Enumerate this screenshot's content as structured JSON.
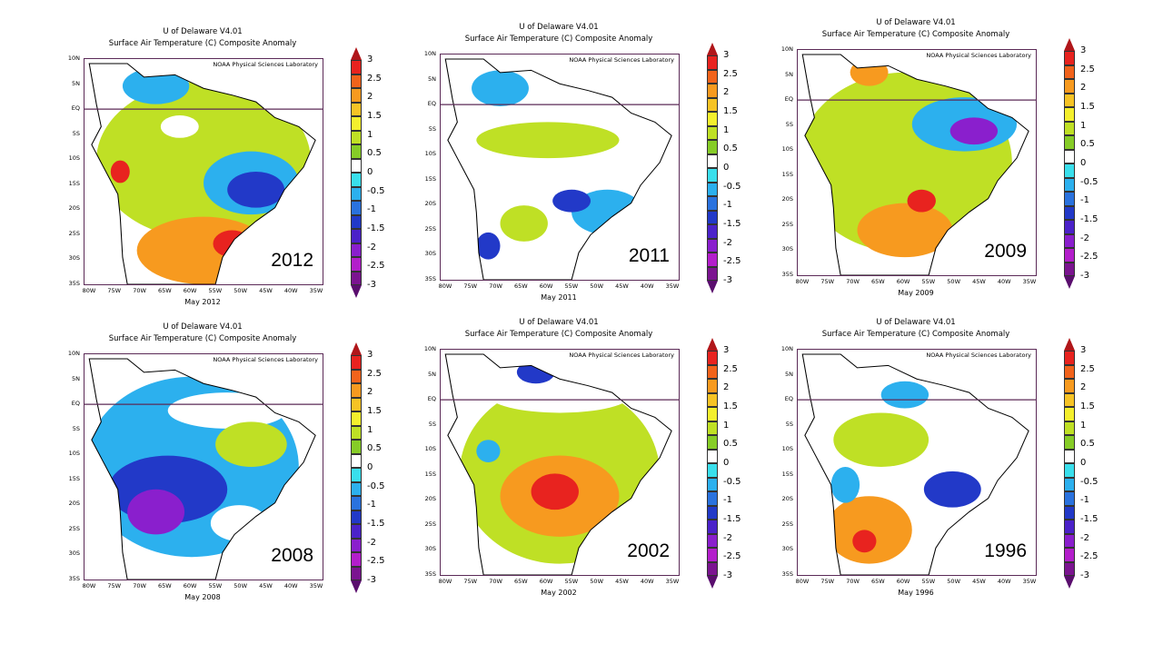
{
  "source_title": "U of Delaware V4.01",
  "variable_title": "Surface Air Temperature (C) Composite Anomaly",
  "credit": "NOAA Physical Sciences Laboratory",
  "lat_labels": [
    "10N",
    "5N",
    "EQ",
    "5S",
    "10S",
    "15S",
    "20S",
    "25S",
    "30S",
    "35S"
  ],
  "lon_labels": [
    "80W",
    "75W",
    "70W",
    "65W",
    "60W",
    "55W",
    "50W",
    "45W",
    "40W",
    "35W"
  ],
  "colorbar": {
    "labels": [
      "3",
      "2.5",
      "2",
      "1.5",
      "1",
      "0.5",
      "0",
      "-0.5",
      "-1",
      "-1.5",
      "-2",
      "-2.5",
      "-3"
    ],
    "colors": [
      "#e8231f",
      "#f2631b",
      "#f79a1f",
      "#f6c325",
      "#f4ef2d",
      "#bfe025",
      "#86cc27",
      "#ffffff",
      "#39dfec",
      "#2cb0ee",
      "#2a72de",
      "#2239c8",
      "#4b22c9",
      "#8a1fcd",
      "#b31ecb",
      "#7b1490"
    ],
    "top_color": "#b0161a",
    "bottom_color": "#5a0e6e"
  },
  "colors": {
    "border": "#5b2a57",
    "warm_strong": "#e8231f",
    "warm": "#f79a1f",
    "mild": "#bfe025",
    "neutral": "#ffffff",
    "cool": "#2cb0ee",
    "cold": "#2239c8",
    "very_cold": "#8a1fcd"
  },
  "panels": [
    {
      "id": "2012",
      "year": "2012",
      "month": "May 2012"
    },
    {
      "id": "2011",
      "year": "2011",
      "month": "May 2011"
    },
    {
      "id": "2009",
      "year": "2009",
      "month": "May 2009"
    },
    {
      "id": "2008",
      "year": "2008",
      "month": "May 2008"
    },
    {
      "id": "2002",
      "year": "2002",
      "month": "May 2002"
    },
    {
      "id": "1996",
      "year": "1996",
      "month": "May 1996"
    }
  ]
}
